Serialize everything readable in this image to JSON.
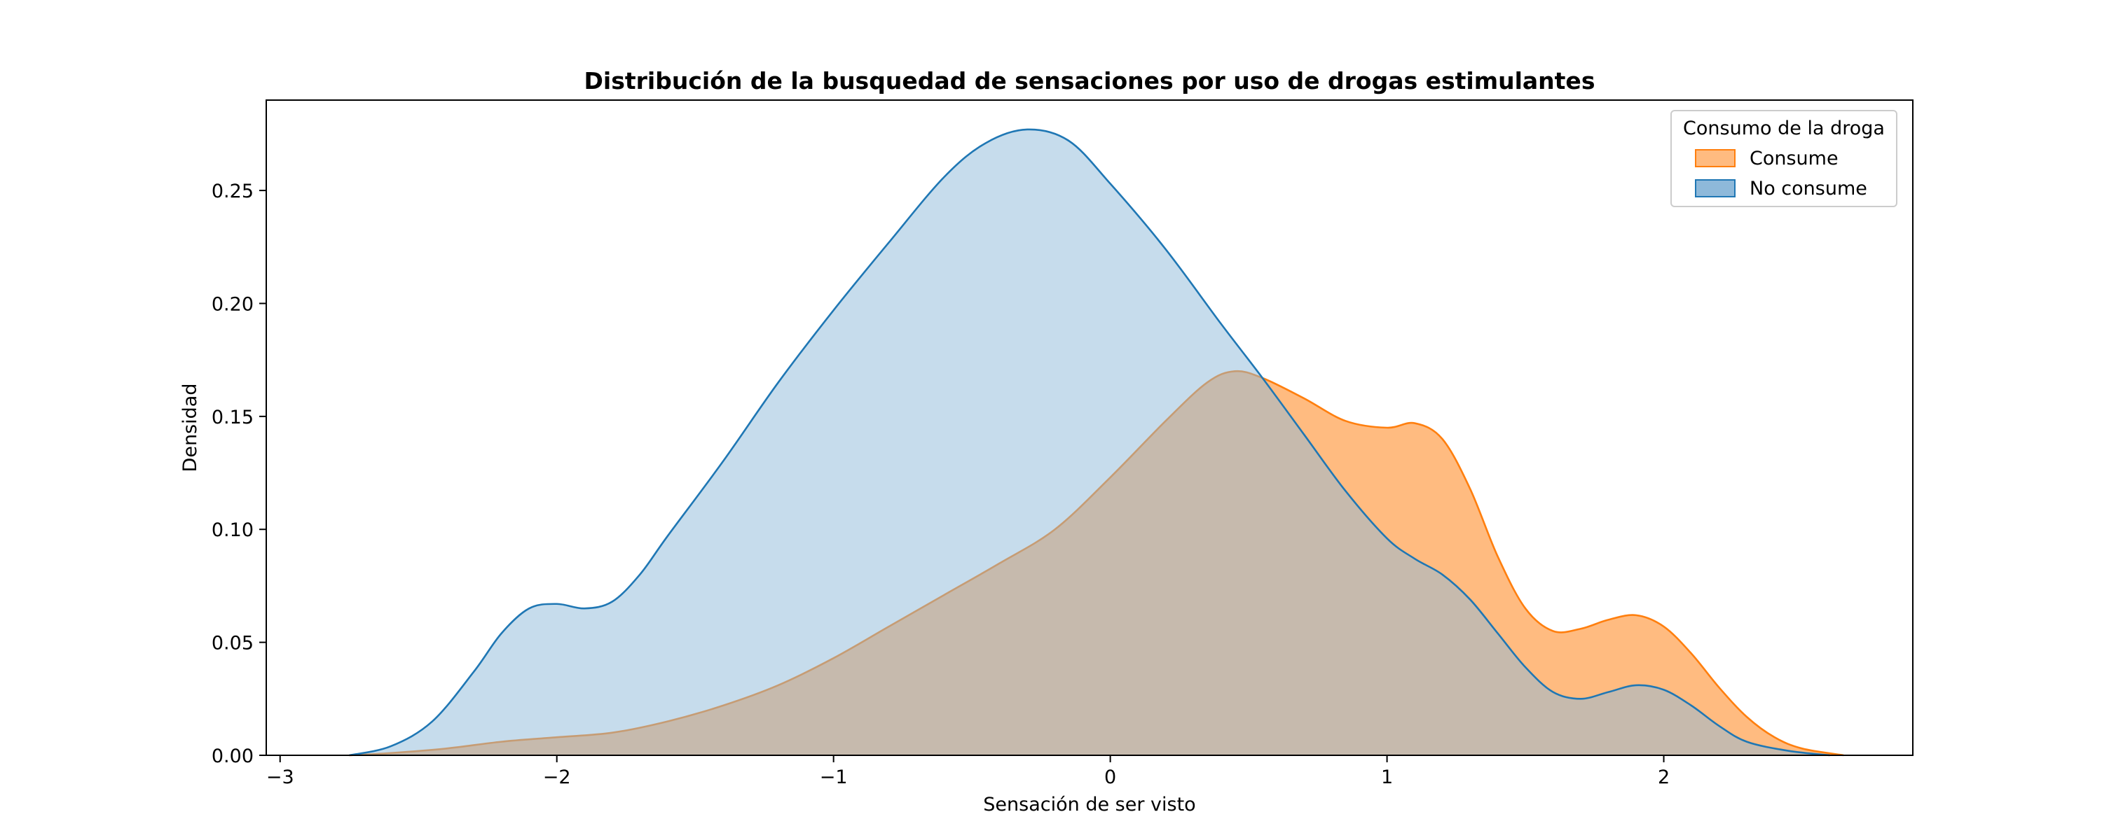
{
  "chart_data": {
    "type": "area",
    "title": "Distribución de la busquedad de sensaciones por uso de drogas estimulantes",
    "xlabel": "Sensación de ser visto",
    "ylabel": "Densidad",
    "xlim": [
      -3.05,
      2.9
    ],
    "ylim": [
      0,
      0.29
    ],
    "x_ticks": [
      -3,
      -2,
      -1,
      0,
      1,
      2
    ],
    "x_tick_labels": [
      "−3",
      "−2",
      "−1",
      "0",
      "1",
      "2"
    ],
    "y_ticks": [
      0.0,
      0.05,
      0.1,
      0.15,
      0.2,
      0.25
    ],
    "y_tick_labels": [
      "0.00",
      "0.05",
      "0.10",
      "0.15",
      "0.20",
      "0.25"
    ],
    "grid": false,
    "legend": {
      "title": "Consumo de la droga",
      "placement": "top-right",
      "entries": [
        "Consume",
        "No consume"
      ]
    },
    "series": [
      {
        "name": "Consume",
        "fill": "#ffbb80",
        "stroke": "#ff7f0e",
        "x": [
          -2.75,
          -2.6,
          -2.4,
          -2.2,
          -2.0,
          -1.8,
          -1.6,
          -1.4,
          -1.2,
          -1.0,
          -0.8,
          -0.6,
          -0.4,
          -0.2,
          0.0,
          0.2,
          0.35,
          0.45,
          0.55,
          0.7,
          0.85,
          1.0,
          1.1,
          1.2,
          1.3,
          1.4,
          1.5,
          1.6,
          1.7,
          1.8,
          1.9,
          2.0,
          2.1,
          2.2,
          2.3,
          2.4,
          2.5,
          2.65
        ],
        "y": [
          0.0,
          0.001,
          0.003,
          0.006,
          0.008,
          0.01,
          0.015,
          0.022,
          0.031,
          0.043,
          0.057,
          0.071,
          0.085,
          0.1,
          0.123,
          0.148,
          0.165,
          0.17,
          0.167,
          0.158,
          0.148,
          0.145,
          0.147,
          0.14,
          0.118,
          0.088,
          0.065,
          0.055,
          0.056,
          0.06,
          0.062,
          0.057,
          0.045,
          0.03,
          0.017,
          0.008,
          0.003,
          0.0
        ]
      },
      {
        "name": "No consume",
        "fill": "#8eb9da",
        "stroke": "#1f77b4",
        "x": [
          -2.75,
          -2.6,
          -2.45,
          -2.3,
          -2.2,
          -2.1,
          -2.0,
          -1.9,
          -1.8,
          -1.7,
          -1.6,
          -1.4,
          -1.2,
          -1.0,
          -0.8,
          -0.6,
          -0.45,
          -0.3,
          -0.15,
          0.0,
          0.2,
          0.4,
          0.55,
          0.7,
          0.85,
          1.0,
          1.1,
          1.2,
          1.3,
          1.4,
          1.5,
          1.6,
          1.7,
          1.8,
          1.9,
          2.0,
          2.1,
          2.2,
          2.3,
          2.45,
          2.6
        ],
        "y": [
          0.0,
          0.004,
          0.015,
          0.037,
          0.054,
          0.065,
          0.067,
          0.065,
          0.068,
          0.08,
          0.097,
          0.13,
          0.165,
          0.197,
          0.227,
          0.256,
          0.271,
          0.277,
          0.272,
          0.253,
          0.224,
          0.191,
          0.167,
          0.142,
          0.117,
          0.096,
          0.087,
          0.08,
          0.069,
          0.054,
          0.039,
          0.028,
          0.025,
          0.028,
          0.031,
          0.029,
          0.022,
          0.013,
          0.006,
          0.002,
          0.0
        ]
      }
    ]
  }
}
